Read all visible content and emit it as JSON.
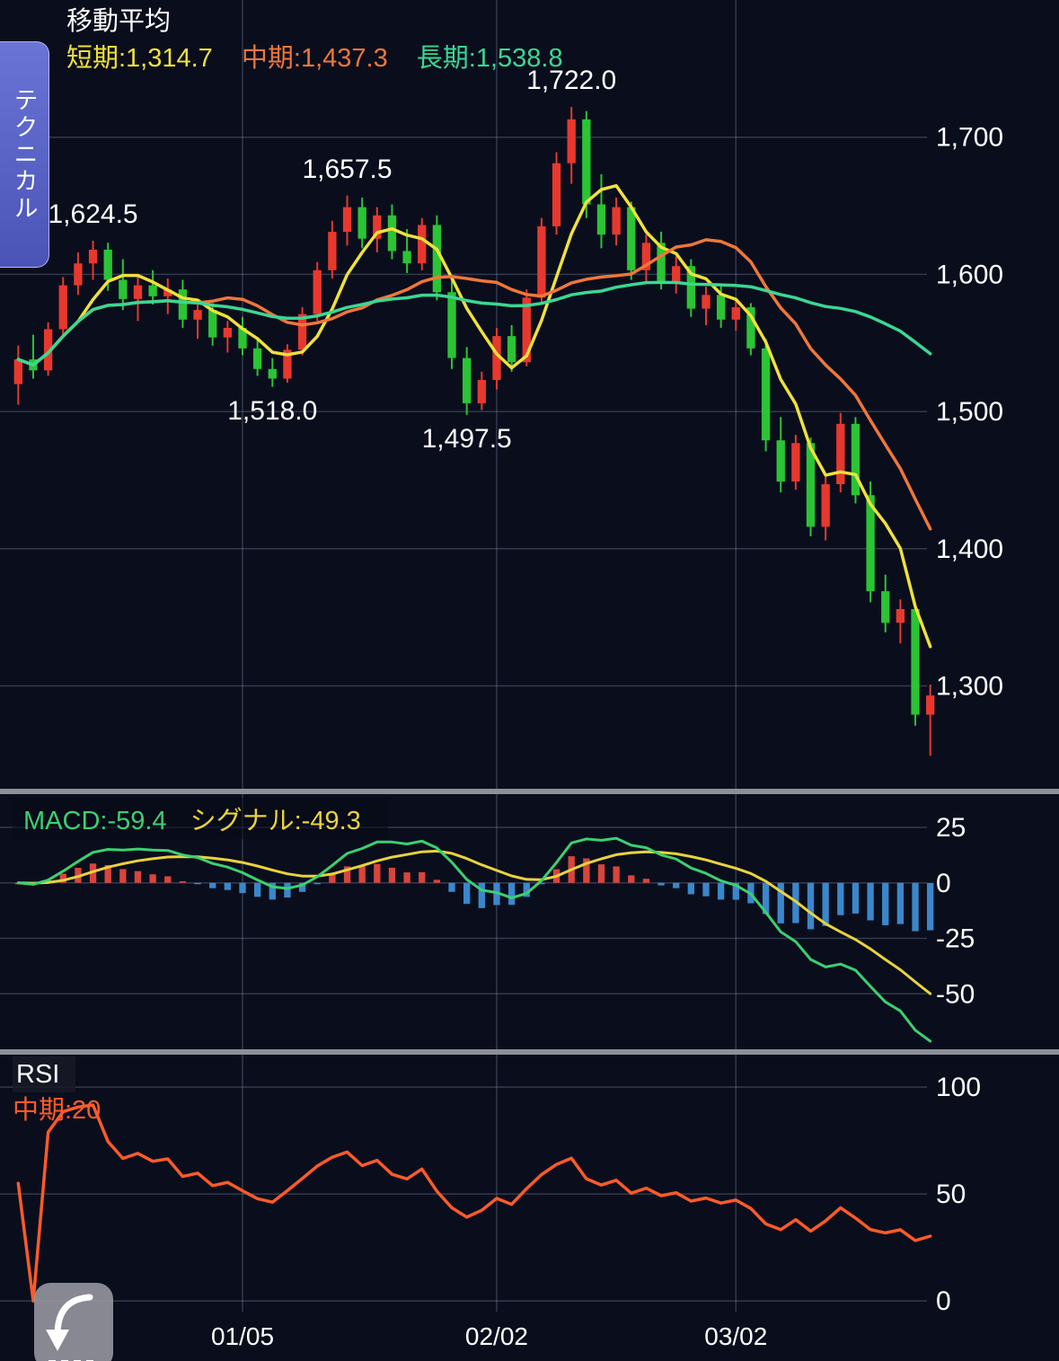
{
  "side_tab": {
    "label": "テクニカル",
    "bg": "#5a63c4"
  },
  "main_legend": {
    "title": "移動平均",
    "items": [
      {
        "name": "short",
        "label": "短期:1,314.7",
        "color": "#efe13b"
      },
      {
        "name": "mid",
        "label": "中期:1,437.3",
        "color": "#f0763a"
      },
      {
        "name": "long",
        "label": "長期:1,538.8",
        "color": "#3bd793"
      }
    ]
  },
  "macd_legend": {
    "items": [
      {
        "name": "macd",
        "label": "MACD:-59.4",
        "color": "#3bd072"
      },
      {
        "name": "signal",
        "label": "シグナル:-49.3",
        "color": "#e8d33e"
      }
    ]
  },
  "rsi_legend": {
    "title": "RSI",
    "items": [
      {
        "name": "mid",
        "label": "中期:20",
        "color": "#ff5a2a"
      }
    ]
  },
  "chart_data": [
    {
      "type": "candlestick",
      "title": "移動平均 (daily candles, Japanese convention: red = up, green = down)",
      "ylim": [
        1225,
        1800
      ],
      "y_ticks": [
        {
          "value": 1700,
          "label": "1,700"
        },
        {
          "value": 1600,
          "label": "1,600"
        },
        {
          "value": 1500,
          "label": "1,500"
        },
        {
          "value": 1400,
          "label": "1,400"
        },
        {
          "value": 1300,
          "label": "1,300"
        }
      ],
      "x_axis": {
        "labels": [
          "01/05",
          "02/02",
          "03/02"
        ],
        "indices": [
          15,
          32,
          48
        ]
      },
      "up_color": "#e8382e",
      "down_color": "#2bc434",
      "annotations": [
        {
          "text": "1,624.5",
          "index": 5,
          "price": 1624.5,
          "pos": "above"
        },
        {
          "text": "1,657.5",
          "index": 22,
          "price": 1657.5,
          "pos": "above"
        },
        {
          "text": "1,722.0",
          "index": 37,
          "price": 1722.0,
          "pos": "above"
        },
        {
          "text": "1,518.0",
          "index": 17,
          "price": 1518.0,
          "pos": "below"
        },
        {
          "text": "1,497.5",
          "index": 30,
          "price": 1497.5,
          "pos": "below"
        }
      ],
      "moving_averages": [
        {
          "name": "短期",
          "period": 5,
          "color": "#efe13b",
          "last_value": 1314.7
        },
        {
          "name": "中期",
          "period": 13,
          "color": "#f0763a",
          "last_value": 1437.3
        },
        {
          "name": "長期",
          "period": 40,
          "color": "#3bd793",
          "last_value": 1538.8
        }
      ],
      "candles": [
        [
          1520,
          1548,
          1505,
          1538
        ],
        [
          1538,
          1556,
          1524,
          1530
        ],
        [
          1530,
          1565,
          1526,
          1560
        ],
        [
          1560,
          1598,
          1554,
          1592
        ],
        [
          1592,
          1616,
          1585,
          1608
        ],
        [
          1608,
          1624.5,
          1596,
          1618
        ],
        [
          1618,
          1623,
          1588,
          1596
        ],
        [
          1596,
          1611,
          1574,
          1582
        ],
        [
          1582,
          1599,
          1566,
          1592
        ],
        [
          1592,
          1603,
          1578,
          1584
        ],
        [
          1584,
          1597,
          1571,
          1589
        ],
        [
          1589,
          1596,
          1561,
          1567
        ],
        [
          1567,
          1581,
          1553,
          1574
        ],
        [
          1574,
          1579,
          1548,
          1554
        ],
        [
          1554,
          1566,
          1543,
          1561
        ],
        [
          1561,
          1569,
          1541,
          1546
        ],
        [
          1546,
          1553,
          1526,
          1531
        ],
        [
          1531,
          1539,
          1518,
          1524
        ],
        [
          1524,
          1549,
          1521,
          1545
        ],
        [
          1545,
          1576,
          1541,
          1571
        ],
        [
          1571,
          1609,
          1566,
          1603
        ],
        [
          1603,
          1639,
          1597,
          1631
        ],
        [
          1631,
          1657.5,
          1621,
          1649
        ],
        [
          1649,
          1656,
          1619,
          1626
        ],
        [
          1626,
          1649,
          1616,
          1643
        ],
        [
          1643,
          1651,
          1611,
          1617
        ],
        [
          1617,
          1633,
          1601,
          1608
        ],
        [
          1608,
          1641,
          1603,
          1636
        ],
        [
          1636,
          1643,
          1581,
          1587
        ],
        [
          1587,
          1596,
          1531,
          1539
        ],
        [
          1539,
          1547,
          1497.5,
          1506
        ],
        [
          1506,
          1529,
          1501,
          1523
        ],
        [
          1523,
          1561,
          1516,
          1555
        ],
        [
          1555,
          1563,
          1529,
          1536
        ],
        [
          1536,
          1589,
          1533,
          1583
        ],
        [
          1583,
          1641,
          1579,
          1635
        ],
        [
          1635,
          1689,
          1629,
          1681
        ],
        [
          1681,
          1722,
          1666,
          1713
        ],
        [
          1713,
          1719,
          1641,
          1651
        ],
        [
          1651,
          1673,
          1619,
          1629
        ],
        [
          1629,
          1656,
          1621,
          1649
        ],
        [
          1649,
          1653,
          1596,
          1603
        ],
        [
          1603,
          1629,
          1593,
          1623
        ],
        [
          1623,
          1631,
          1589,
          1595
        ],
        [
          1595,
          1613,
          1586,
          1606
        ],
        [
          1606,
          1611,
          1569,
          1575
        ],
        [
          1575,
          1591,
          1563,
          1585
        ],
        [
          1585,
          1593,
          1561,
          1567
        ],
        [
          1567,
          1581,
          1559,
          1576
        ],
        [
          1576,
          1579,
          1541,
          1546
        ],
        [
          1546,
          1553,
          1471,
          1479
        ],
        [
          1479,
          1496,
          1441,
          1449
        ],
        [
          1449,
          1483,
          1443,
          1477
        ],
        [
          1477,
          1481,
          1409,
          1416
        ],
        [
          1416,
          1453,
          1406,
          1447
        ],
        [
          1447,
          1499,
          1441,
          1491
        ],
        [
          1491,
          1496,
          1433,
          1439
        ],
        [
          1439,
          1449,
          1361,
          1369
        ],
        [
          1369,
          1381,
          1339,
          1346
        ],
        [
          1346,
          1363,
          1331,
          1356
        ],
        [
          1356,
          1359,
          1271,
          1279
        ],
        [
          1279,
          1301,
          1249,
          1293
        ]
      ]
    },
    {
      "type": "macd",
      "values": {
        "macd": -59.4,
        "signal": -49.3
      },
      "params": {
        "fast": 12,
        "slow": 26,
        "signal": 9
      },
      "ylim": [
        -75,
        40
      ],
      "y_ticks": [
        {
          "value": 25,
          "label": "25"
        },
        {
          "value": 0,
          "label": "0"
        },
        {
          "value": -25,
          "label": "-25"
        },
        {
          "value": -50,
          "label": "-50"
        }
      ],
      "macd_color": "#3bd072",
      "signal_color": "#e8d33e",
      "hist_up_color": "#d9453c",
      "hist_down_color": "#3a87cc",
      "derived_from": "candles (MACD = EMA12 - EMA26, signal = EMA9)"
    },
    {
      "type": "rsi",
      "period": 14,
      "last_value": 20,
      "ylim": [
        -5,
        115.2
      ],
      "y_ticks": [
        {
          "value": 100,
          "label": "100"
        },
        {
          "value": 50,
          "label": "50"
        },
        {
          "value": 0,
          "label": "0"
        }
      ],
      "line_color": "#ff5a2a"
    }
  ]
}
